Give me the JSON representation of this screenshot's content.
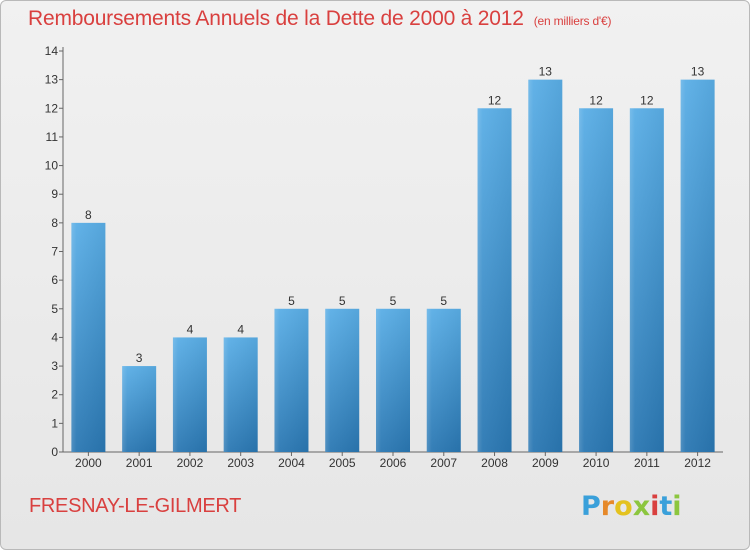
{
  "header": {
    "title": "Remboursements Annuels de la Dette de 2000 à 2012",
    "unit": "(en milliers d'€)"
  },
  "footer": {
    "commune": "FRESNAY-LE-GILMERT",
    "logo_text": "Proxiti"
  },
  "colors": {
    "title": "#d9403f",
    "bar_top": "#5aaee6",
    "bar_bottom": "#2a77b2"
  },
  "chart_data": {
    "type": "bar",
    "categories": [
      "2000",
      "2001",
      "2002",
      "2003",
      "2004",
      "2005",
      "2006",
      "2007",
      "2008",
      "2009",
      "2010",
      "2011",
      "2012"
    ],
    "values": [
      8,
      3,
      4,
      4,
      5,
      5,
      5,
      5,
      12,
      13,
      12,
      12,
      13
    ],
    "data_labels": [
      "8",
      "3",
      "4",
      "4",
      "5",
      "5",
      "5",
      "5",
      "12",
      "13",
      "12",
      "12",
      "13"
    ],
    "title": "Remboursements Annuels de la Dette de 2000 à 2012",
    "xlabel": "",
    "ylabel": "",
    "ylim": [
      0,
      14
    ],
    "y_ticks": [
      "0",
      "1",
      "2",
      "3",
      "4",
      "5",
      "6",
      "7",
      "8",
      "9",
      "10",
      "11",
      "12",
      "13",
      "14"
    ],
    "grid": false
  }
}
